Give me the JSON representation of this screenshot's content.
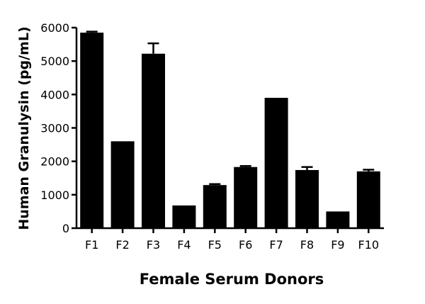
{
  "chart_data": {
    "type": "bar",
    "categories": [
      "F1",
      "F2",
      "F3",
      "F4",
      "F5",
      "F6",
      "F7",
      "F8",
      "F9",
      "F10"
    ],
    "values": [
      5850,
      2600,
      5220,
      680,
      1290,
      1830,
      3900,
      1740,
      500,
      1700
    ],
    "error": [
      30,
      0,
      310,
      0,
      30,
      30,
      0,
      90,
      0,
      50
    ],
    "xlabel": "Female Serum Donors",
    "ylabel": "Human Granulysin (pg/mL)",
    "ylim": [
      0,
      6000
    ],
    "yticks": [
      0,
      1000,
      2000,
      3000,
      4000,
      5000,
      6000
    ],
    "grid": false,
    "bar_color": "#000000"
  }
}
